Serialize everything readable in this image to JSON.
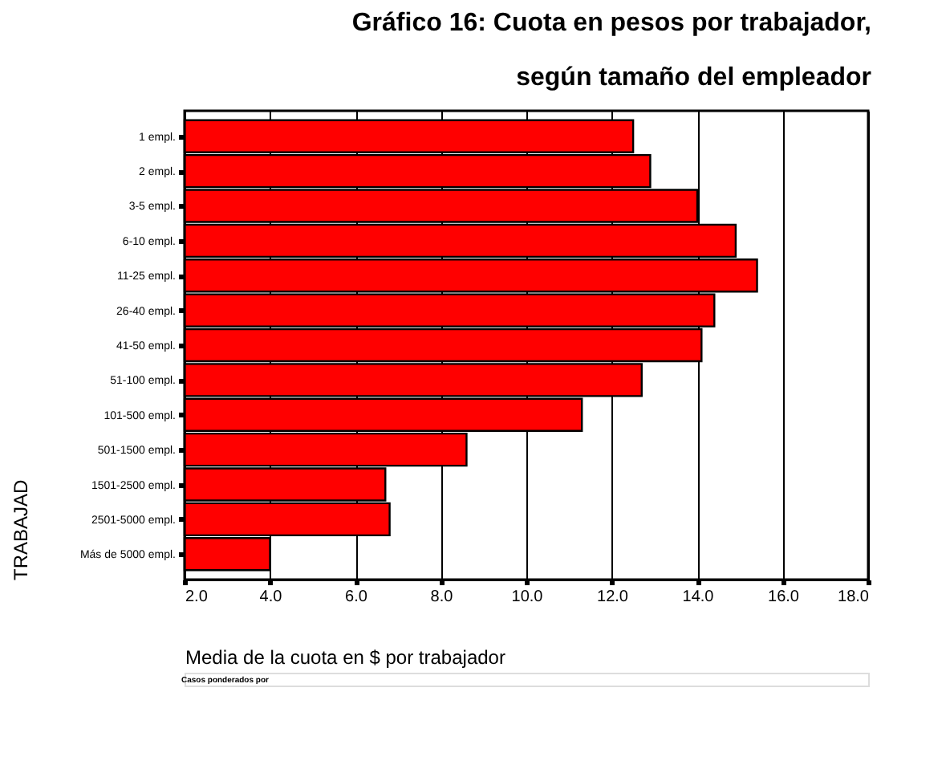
{
  "chart_data": {
    "type": "bar",
    "orientation": "horizontal",
    "title": [
      "Gráfico 16: Cuota en pesos por trabajador,",
      "según tamaño del empleador"
    ],
    "categories": [
      "1 empl.",
      "2 empl.",
      "3-5 empl.",
      "6-10 empl.",
      "11-25 empl.",
      "26-40 empl.",
      "41-50 empl.",
      "51-100 empl.",
      "101-500 empl.",
      "501-1500 empl.",
      "1501-2500 empl.",
      "2501-5000 empl.",
      "Más de 5000 empl."
    ],
    "values": [
      12.5,
      12.9,
      14.0,
      14.9,
      15.4,
      14.4,
      14.1,
      12.7,
      11.3,
      8.6,
      6.7,
      6.8,
      4.0
    ],
    "color": "#ff0000",
    "xlim": [
      2,
      18
    ],
    "xticks": [
      {
        "value": 2,
        "label": "2.0"
      },
      {
        "value": 4,
        "label": "4.0"
      },
      {
        "value": 6,
        "label": "6.0"
      },
      {
        "value": 8,
        "label": "8.0"
      },
      {
        "value": 10,
        "label": "10.0"
      },
      {
        "value": 12,
        "label": "12.0"
      },
      {
        "value": 14,
        "label": "14.0"
      },
      {
        "value": 16,
        "label": "16.0"
      },
      {
        "value": 18,
        "label": "18.0"
      }
    ],
    "xlabel": "Media de la cuota en $ por trabajador",
    "ylabel": "TRABAJAD",
    "grid": "x",
    "annotations": [
      "Casos ponderados por"
    ]
  }
}
